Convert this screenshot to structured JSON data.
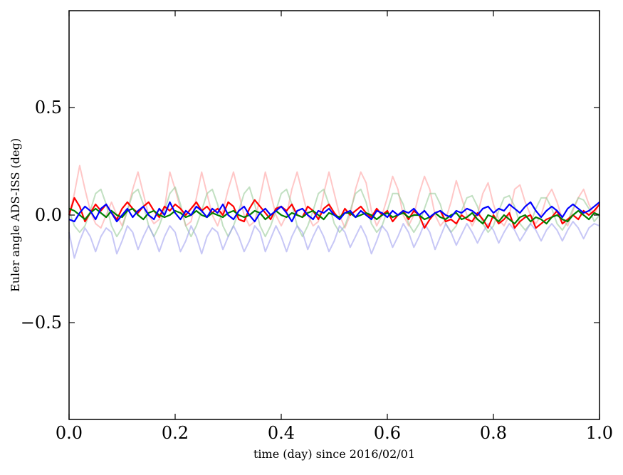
{
  "chart_data": {
    "type": "line",
    "title": "",
    "xlabel": "time (day) since 2016/02/01",
    "ylabel": "Euler angle ADS-ISS (deg)",
    "xlim": [
      0.0,
      1.0
    ],
    "ylim": [
      -0.95,
      0.95
    ],
    "x_ticks": [
      0.0,
      0.2,
      0.4,
      0.6,
      0.8,
      1.0
    ],
    "x_tick_labels": [
      "0.0",
      "0.2",
      "0.4",
      "0.6",
      "0.8",
      "1.0"
    ],
    "y_ticks": [
      -0.5,
      0.0,
      0.5
    ],
    "y_tick_labels": [
      "−0.5",
      "0.0",
      "0.5"
    ],
    "grid": false,
    "legend": "none",
    "x_step": 0.01,
    "series": [
      {
        "color": "#ff9999",
        "opacity": 0.55,
        "values": [
          0.0,
          0.1,
          0.23,
          0.12,
          0.02,
          -0.04,
          -0.06,
          0.0,
          0.06,
          0.0,
          -0.05,
          0.02,
          0.12,
          0.2,
          0.1,
          0.0,
          -0.04,
          -0.02,
          0.03,
          0.2,
          0.12,
          0.03,
          -0.05,
          -0.03,
          0.08,
          0.2,
          0.1,
          0.0,
          -0.05,
          0.02,
          0.12,
          0.2,
          0.1,
          0.0,
          -0.05,
          -0.03,
          0.08,
          0.2,
          0.1,
          0.0,
          -0.05,
          0.0,
          0.12,
          0.2,
          0.1,
          0.0,
          -0.05,
          -0.03,
          0.1,
          0.2,
          0.1,
          0.0,
          -0.06,
          0.0,
          0.12,
          0.2,
          0.15,
          0.02,
          -0.05,
          0.0,
          0.08,
          0.18,
          0.12,
          0.0,
          -0.05,
          0.0,
          0.1,
          0.18,
          0.12,
          0.0,
          -0.05,
          -0.02,
          0.06,
          0.16,
          0.08,
          0.0,
          -0.05,
          0.0,
          0.1,
          0.15,
          0.05,
          -0.02,
          -0.05,
          0.0,
          0.12,
          0.14,
          0.06,
          0.0,
          -0.04,
          0.0,
          0.08,
          0.12,
          0.06,
          -0.02,
          -0.05,
          0.02,
          0.08,
          0.12,
          0.05,
          0.0,
          0.06
        ]
      },
      {
        "color": "#99cc99",
        "opacity": 0.6,
        "values": [
          0.02,
          -0.05,
          -0.08,
          -0.05,
          0.02,
          0.1,
          0.12,
          0.05,
          -0.05,
          -0.1,
          -0.06,
          0.02,
          0.1,
          0.12,
          0.05,
          -0.05,
          -0.1,
          -0.05,
          0.02,
          0.1,
          0.13,
          0.05,
          -0.05,
          -0.1,
          -0.05,
          0.02,
          0.1,
          0.12,
          0.05,
          -0.05,
          -0.1,
          -0.05,
          0.02,
          0.1,
          0.13,
          0.05,
          -0.05,
          -0.1,
          -0.05,
          0.02,
          0.1,
          0.12,
          0.05,
          -0.05,
          -0.1,
          -0.05,
          0.02,
          0.1,
          0.12,
          0.05,
          -0.04,
          -0.08,
          -0.05,
          0.02,
          0.1,
          0.12,
          0.06,
          -0.04,
          -0.08,
          -0.05,
          0.02,
          0.1,
          0.1,
          0.05,
          -0.04,
          -0.08,
          -0.04,
          0.03,
          0.1,
          0.1,
          0.05,
          -0.04,
          -0.08,
          -0.05,
          0.02,
          0.08,
          0.09,
          0.04,
          -0.04,
          -0.08,
          -0.05,
          0.02,
          0.08,
          0.09,
          0.04,
          -0.04,
          -0.07,
          -0.04,
          0.03,
          0.08,
          0.08,
          0.03,
          -0.04,
          -0.07,
          -0.03,
          0.03,
          0.08,
          0.07,
          0.03,
          -0.03,
          0.0
        ]
      },
      {
        "color": "#9999ee",
        "opacity": 0.55,
        "values": [
          -0.08,
          -0.2,
          -0.12,
          -0.06,
          -0.1,
          -0.17,
          -0.1,
          -0.06,
          -0.08,
          -0.18,
          -0.12,
          -0.05,
          -0.08,
          -0.16,
          -0.1,
          -0.05,
          -0.1,
          -0.17,
          -0.1,
          -0.05,
          -0.08,
          -0.17,
          -0.12,
          -0.05,
          -0.1,
          -0.18,
          -0.1,
          -0.06,
          -0.08,
          -0.16,
          -0.1,
          -0.05,
          -0.1,
          -0.17,
          -0.12,
          -0.05,
          -0.08,
          -0.17,
          -0.11,
          -0.05,
          -0.1,
          -0.17,
          -0.1,
          -0.05,
          -0.08,
          -0.16,
          -0.1,
          -0.05,
          -0.1,
          -0.17,
          -0.12,
          -0.05,
          -0.08,
          -0.15,
          -0.1,
          -0.05,
          -0.1,
          -0.18,
          -0.12,
          -0.05,
          -0.08,
          -0.15,
          -0.1,
          -0.04,
          -0.08,
          -0.15,
          -0.1,
          -0.04,
          -0.08,
          -0.16,
          -0.1,
          -0.04,
          -0.08,
          -0.14,
          -0.09,
          -0.04,
          -0.08,
          -0.13,
          -0.08,
          -0.04,
          -0.07,
          -0.13,
          -0.08,
          -0.04,
          -0.07,
          -0.12,
          -0.08,
          -0.04,
          -0.07,
          -0.12,
          -0.07,
          -0.04,
          -0.07,
          -0.12,
          -0.07,
          -0.03,
          -0.06,
          -0.11,
          -0.06,
          -0.04,
          -0.05
        ]
      },
      {
        "color": "#ff0000",
        "opacity": 1.0,
        "values": [
          0.0,
          0.08,
          0.04,
          -0.03,
          0.01,
          0.05,
          0.02,
          0.05,
          0.01,
          -0.02,
          0.03,
          0.06,
          0.03,
          0.01,
          0.04,
          0.06,
          0.02,
          -0.01,
          0.04,
          0.02,
          0.05,
          0.03,
          0.0,
          0.03,
          0.06,
          0.02,
          0.04,
          0.01,
          0.03,
          0.0,
          0.06,
          0.04,
          -0.02,
          -0.03,
          0.03,
          0.07,
          0.04,
          0.01,
          -0.02,
          0.03,
          0.04,
          0.02,
          0.05,
          0.0,
          -0.01,
          0.04,
          0.02,
          -0.02,
          0.03,
          0.05,
          0.01,
          -0.02,
          0.03,
          0.0,
          0.02,
          0.04,
          0.01,
          -0.01,
          0.03,
          0.0,
          0.02,
          -0.03,
          0.0,
          0.02,
          -0.02,
          0.02,
          0.0,
          -0.06,
          -0.02,
          0.01,
          0.02,
          -0.03,
          -0.02,
          -0.04,
          0.0,
          -0.02,
          -0.03,
          0.01,
          -0.02,
          -0.06,
          0.0,
          -0.04,
          -0.02,
          0.01,
          -0.06,
          -0.03,
          -0.01,
          0.0,
          -0.06,
          -0.04,
          -0.02,
          -0.01,
          0.02,
          -0.04,
          -0.02,
          0.0,
          -0.02,
          0.02,
          0.0,
          0.02,
          0.05
        ]
      },
      {
        "color": "#007f00",
        "opacity": 1.0,
        "values": [
          0.03,
          0.02,
          0.0,
          -0.02,
          0.01,
          0.03,
          0.01,
          -0.01,
          0.02,
          0.0,
          -0.01,
          0.02,
          0.03,
          0.0,
          -0.02,
          0.01,
          0.02,
          0.0,
          -0.01,
          0.0,
          0.02,
          0.01,
          -0.01,
          0.0,
          0.02,
          0.0,
          -0.01,
          0.01,
          0.0,
          -0.01,
          0.01,
          0.02,
          0.0,
          -0.01,
          0.0,
          0.02,
          0.01,
          -0.02,
          0.0,
          0.02,
          0.0,
          -0.01,
          0.01,
          0.0,
          -0.01,
          0.01,
          0.02,
          0.0,
          -0.02,
          0.01,
          0.0,
          -0.01,
          0.01,
          0.01,
          -0.01,
          0.0,
          0.01,
          0.0,
          -0.02,
          0.0,
          0.01,
          -0.01,
          0.0,
          0.01,
          -0.01,
          0.0,
          0.0,
          -0.02,
          -0.01,
          0.01,
          -0.01,
          -0.02,
          0.0,
          0.01,
          -0.02,
          -0.01,
          0.01,
          -0.02,
          -0.04,
          0.0,
          -0.01,
          -0.03,
          0.0,
          -0.02,
          -0.04,
          -0.01,
          0.0,
          -0.03,
          -0.01,
          -0.02,
          -0.04,
          -0.01,
          0.0,
          -0.02,
          -0.03,
          0.0,
          0.02,
          0.0,
          -0.02,
          0.01,
          0.0
        ]
      },
      {
        "color": "#0000ff",
        "opacity": 1.0,
        "values": [
          -0.02,
          -0.03,
          0.01,
          0.04,
          0.02,
          -0.02,
          0.03,
          0.05,
          0.01,
          -0.03,
          0.0,
          0.03,
          -0.01,
          0.02,
          0.04,
          0.0,
          -0.02,
          0.03,
          0.0,
          0.06,
          0.01,
          -0.02,
          0.02,
          0.0,
          0.04,
          0.02,
          -0.01,
          0.03,
          0.01,
          0.05,
          0.0,
          -0.02,
          0.02,
          0.04,
          0.0,
          -0.03,
          0.01,
          0.03,
          0.0,
          0.02,
          0.04,
          0.01,
          -0.03,
          0.02,
          0.03,
          0.0,
          -0.02,
          0.02,
          0.01,
          0.03,
          0.0,
          -0.02,
          0.01,
          0.02,
          -0.01,
          0.02,
          0.0,
          -0.02,
          0.02,
          0.01,
          -0.01,
          0.02,
          0.0,
          0.02,
          0.01,
          0.03,
          0.0,
          0.02,
          -0.01,
          0.01,
          0.02,
          0.0,
          -0.01,
          0.02,
          0.01,
          0.03,
          0.02,
          0.0,
          0.03,
          0.04,
          0.01,
          0.03,
          0.02,
          0.05,
          0.03,
          0.01,
          0.04,
          0.06,
          0.02,
          -0.01,
          0.02,
          0.04,
          0.02,
          -0.01,
          0.03,
          0.05,
          0.03,
          0.01,
          0.02,
          0.04,
          0.06
        ]
      }
    ]
  }
}
